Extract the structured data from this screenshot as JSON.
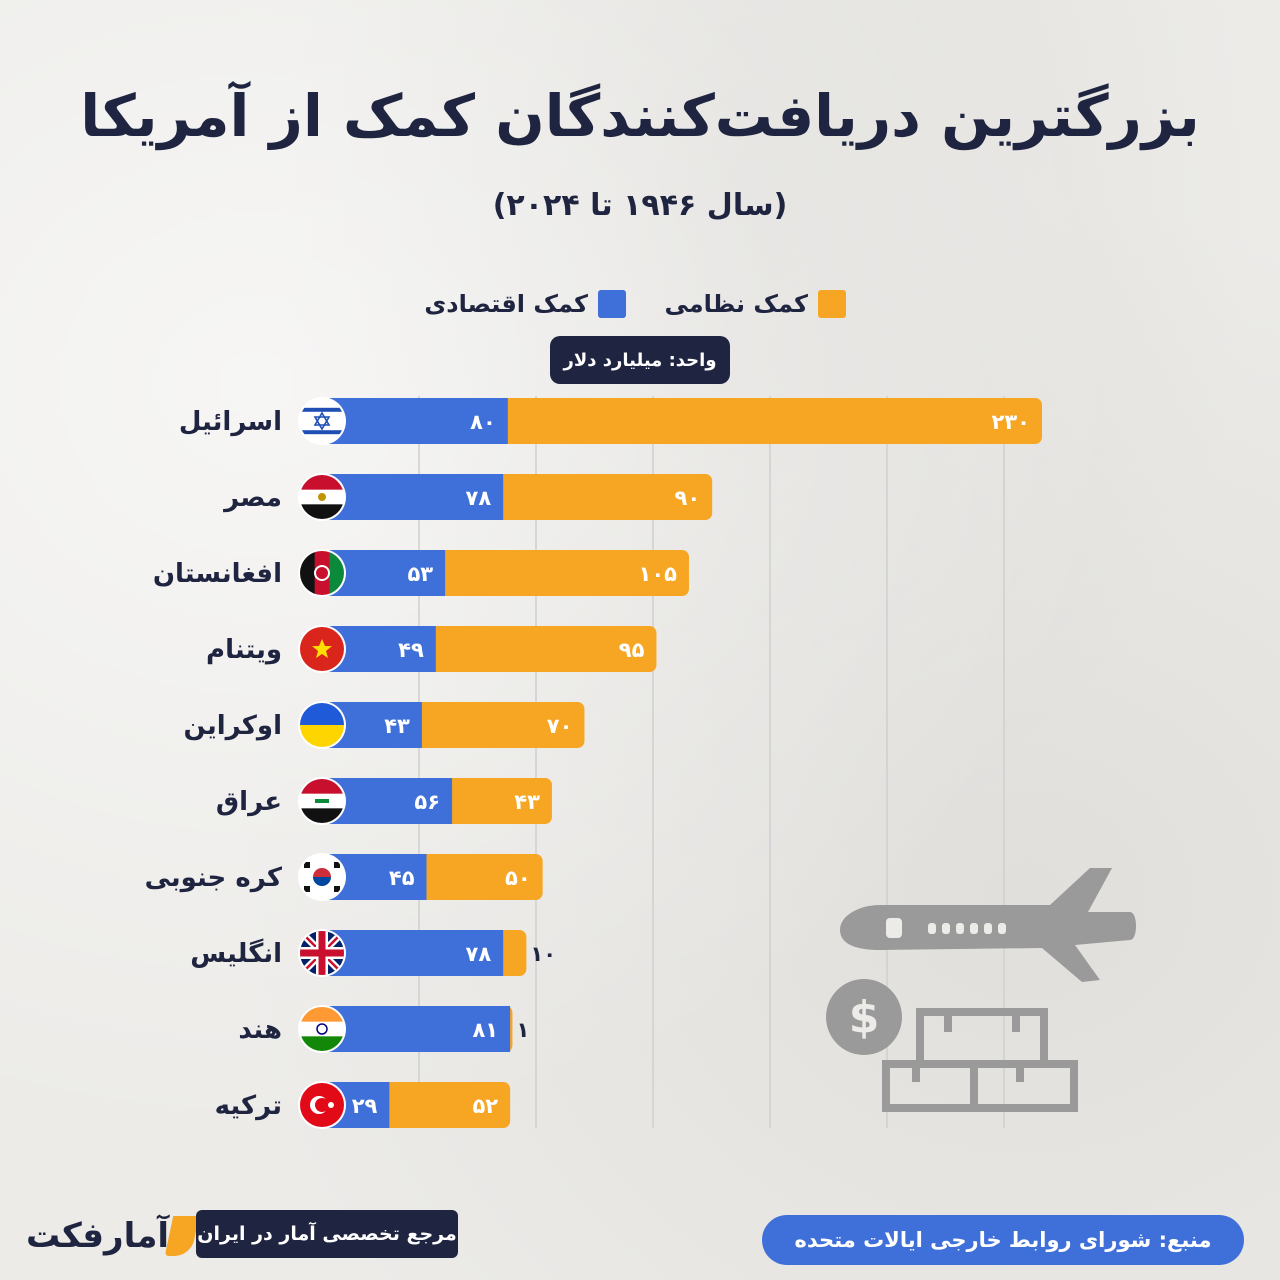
{
  "title": "بزرگترین دریافت‌کنندگان کمک از آمریکا",
  "subtitle": "(سال ۱۹۴۶ تا ۲۰۲۴)",
  "legend": {
    "military_label": "کمک نظامی",
    "economic_label": "کمک اقتصادی"
  },
  "unit_label": "واحد: میلیارد دلار",
  "colors": {
    "military": "#f6a623",
    "economic": "#3f6fd8",
    "dark": "#1f2540",
    "grid": "#cfcfcf",
    "illustration": "#9a9a9a"
  },
  "chart_data": {
    "type": "bar",
    "orientation": "horizontal",
    "stacked": true,
    "categories": [
      "اسرائیل",
      "مصر",
      "افغانستان",
      "ویتنام",
      "اوکراین",
      "عراق",
      "کره جنوبی",
      "انگلیس",
      "هند",
      "ترکیه"
    ],
    "flags": [
      "israel-flag-icon",
      "egypt-flag-icon",
      "afghanistan-flag-icon",
      "vietnam-flag-icon",
      "ukraine-flag-icon",
      "iraq-flag-icon",
      "south-korea-flag-icon",
      "uk-flag-icon",
      "india-flag-icon",
      "turkey-flag-icon"
    ],
    "series": [
      {
        "name": "کمک اقتصادی",
        "values": [
          80,
          78,
          53,
          49,
          43,
          56,
          45,
          78,
          81,
          29
        ],
        "labels": [
          "۸۰",
          "۷۸",
          "۵۳",
          "۴۹",
          "۴۳",
          "۵۶",
          "۴۵",
          "۷۸",
          "۸۱",
          "۲۹"
        ]
      },
      {
        "name": "کمک نظامی",
        "values": [
          230,
          90,
          105,
          95,
          70,
          43,
          50,
          10,
          1,
          52
        ],
        "labels": [
          "۲۳۰",
          "۹۰",
          "۱۰۵",
          "۹۵",
          "۷۰",
          "۴۳",
          "۵۰",
          "۱۰",
          "۱",
          "۵۲"
        ]
      }
    ],
    "xlim": [
      0,
      360
    ],
    "grid": true,
    "legend_position": "top-center"
  },
  "brand": {
    "logo_text": "آمارفکت",
    "tagline": "مرجع تخصصی آمار در ایران"
  },
  "source": "منبع: شورای روابط خارجی ایالات متحده"
}
